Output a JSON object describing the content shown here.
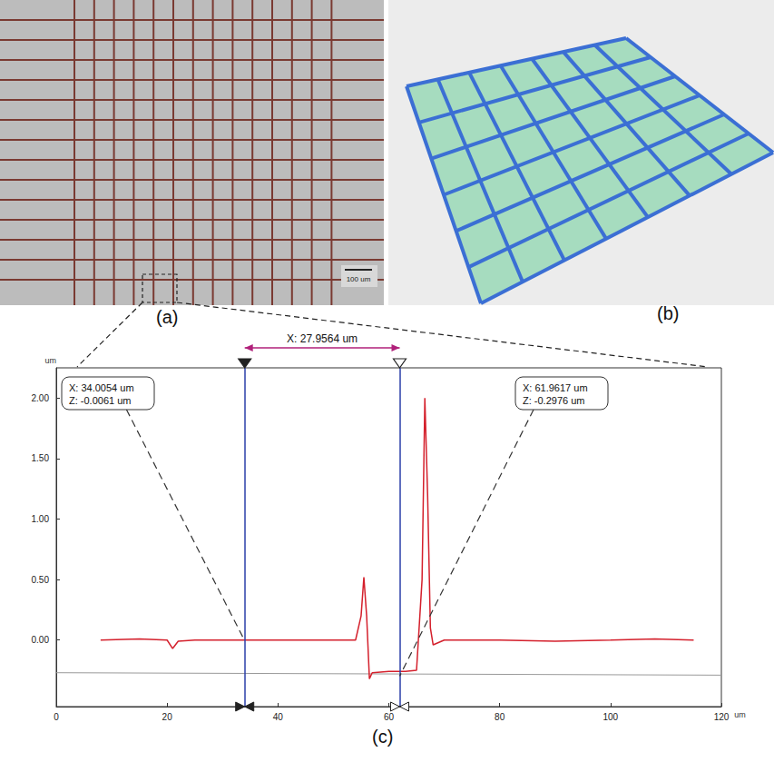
{
  "panels": {
    "a": {
      "label": "(a)",
      "scale_bar": "100 um"
    },
    "b": {
      "label": "(b)"
    }
  },
  "chart_data": {
    "type": "line",
    "label": "(c)",
    "xlabel": "um",
    "ylabel": "um",
    "xlim": [
      0,
      120
    ],
    "xticks": [
      0,
      20,
      40,
      60,
      80,
      100,
      120
    ],
    "ylim": [
      -0.55,
      2.25
    ],
    "yticks": [
      {
        "value": 0,
        "label": "0.00"
      },
      {
        "value": 0.5,
        "label": "0.50"
      },
      {
        "value": 1,
        "label": "1.00"
      },
      {
        "value": 1.5,
        "label": "1.50"
      },
      {
        "value": 2,
        "label": "2.00"
      }
    ],
    "grid": false,
    "series": [
      {
        "color": "#d4202c",
        "line_style": "solid",
        "x": [
          8,
          15,
          20,
          21,
          22,
          25,
          35,
          45,
          54,
          55,
          55.5,
          56,
          56.5,
          57,
          60,
          63,
          65,
          66,
          66.5,
          67,
          67.5,
          68,
          70,
          80,
          90,
          100,
          108,
          115
        ],
        "values": [
          0,
          0.01,
          0,
          -0.07,
          -0.01,
          0,
          0,
          0,
          0,
          0.2,
          0.52,
          0.2,
          -0.32,
          -0.27,
          -0.26,
          -0.26,
          -0.25,
          0.5,
          2.0,
          1.2,
          0.1,
          -0.04,
          0,
          0,
          -0.01,
          0,
          0.01,
          0
        ]
      },
      {
        "color": "#9a9a9a",
        "line_style": "solid",
        "x": [
          0,
          120
        ],
        "values": [
          -0.27,
          -0.29
        ]
      }
    ],
    "cursors": [
      {
        "x": 34.0054,
        "z": -0.0061,
        "marker": "filled",
        "labels": [
          "X: 34.0054 um",
          "Z: -0.0061 um"
        ]
      },
      {
        "x": 61.9617,
        "z": -0.2976,
        "marker": "hollow",
        "labels": [
          "X: 61.9617 um",
          "Z: -0.2976 um"
        ]
      }
    ],
    "span": {
      "value": 27.9564,
      "label": "X: 27.9564 um"
    }
  }
}
